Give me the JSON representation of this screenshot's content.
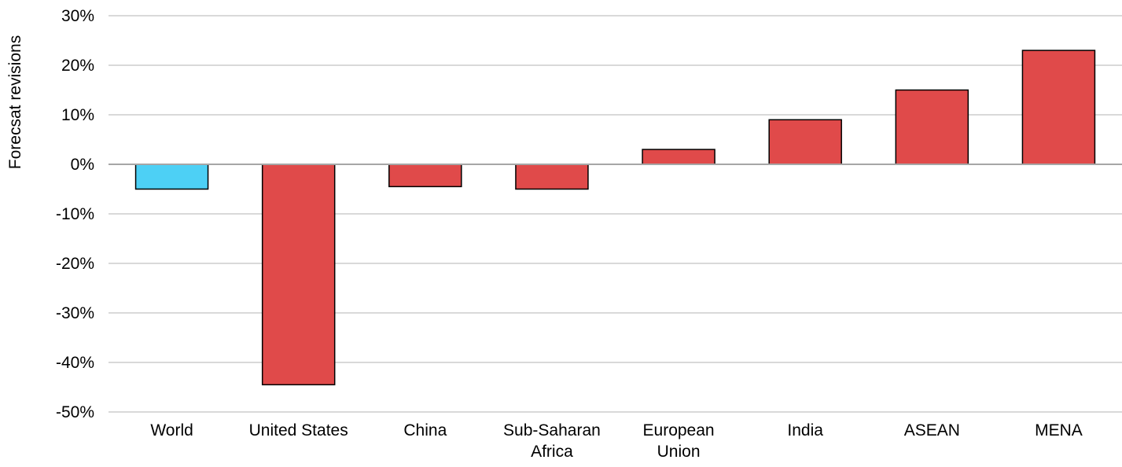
{
  "chart_data": {
    "type": "bar",
    "title": "",
    "xlabel": "",
    "ylabel": "Forecsat revisions",
    "ylim": [
      -50,
      30
    ],
    "yticks": [
      30,
      20,
      10,
      0,
      -10,
      -20,
      -30,
      -40,
      -50
    ],
    "ytick_labels": [
      "30%",
      "20%",
      "10%",
      "0%",
      "-10%",
      "-20%",
      "-30%",
      "-40%",
      "-50%"
    ],
    "grid": true,
    "legend": "none",
    "categories": [
      [
        "World"
      ],
      [
        "United States"
      ],
      [
        "China"
      ],
      [
        "Sub-Saharan",
        "Africa"
      ],
      [
        "European",
        "Union"
      ],
      [
        "India"
      ],
      [
        "ASEAN"
      ],
      [
        "MENA"
      ]
    ],
    "values": [
      -5,
      -44.5,
      -4.5,
      -5,
      3,
      9,
      15,
      23
    ],
    "colors": {
      "highlight": "#4DD0F5",
      "bar": "#E04A4A",
      "bar_outline": "#000000",
      "grid": "#D9D9D9",
      "zero_line": "#A6A6A6"
    },
    "highlight_index": 0
  }
}
